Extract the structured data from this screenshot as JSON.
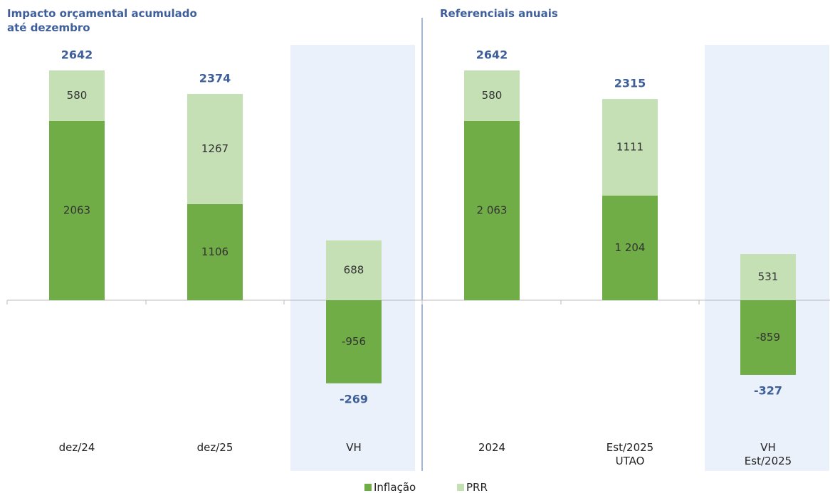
{
  "chart_data": {
    "type": "stacked_bar",
    "titles": [
      "Impacto orçamental acumulado até dezembro",
      "Referenciais anuais"
    ],
    "categories": [
      "dez/24",
      "dez/25",
      "VH",
      "2024",
      "Est/2025\nUTAO",
      "VH\nEst/2025"
    ],
    "series": [
      {
        "name": "Inflação",
        "color": "#70ad47",
        "values": [
          2063,
          1106,
          -956,
          2063,
          1204,
          -859
        ],
        "value_labels": [
          "2063",
          "1106",
          "-956",
          "2 063",
          "1 204",
          "-859"
        ]
      },
      {
        "name": "PRR",
        "color": "#c5e0b4",
        "values": [
          580,
          1267,
          688,
          580,
          1111,
          531
        ]
      }
    ],
    "totals": [
      2642,
      2374,
      -269,
      2642,
      2315,
      -327
    ],
    "highlight_categories": [
      2,
      5
    ],
    "ylim": [
      -1000,
      3000
    ]
  }
}
